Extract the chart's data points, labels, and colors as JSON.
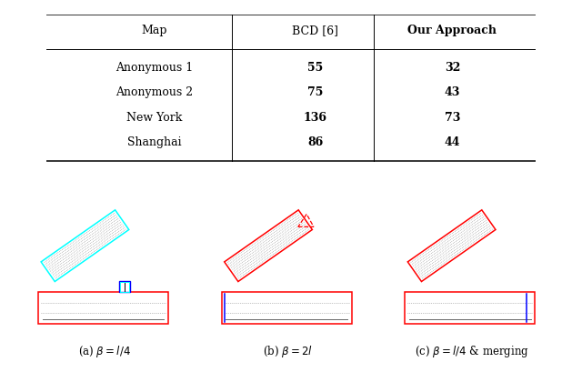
{
  "table": {
    "headers": [
      "Map",
      "BCD [6]",
      "Our Approach"
    ],
    "rows": [
      [
        "Anonymous 1",
        "55",
        "32"
      ],
      [
        "Anonymous 2",
        "75",
        "43"
      ],
      [
        "New York",
        "136",
        "73"
      ],
      [
        "Shanghai",
        "86",
        "44"
      ]
    ]
  },
  "captions": [
    "(a) $\\beta = l/4$",
    "(b) $\\beta = 2l$",
    "(c) $\\beta = l/4$ & merging"
  ],
  "fig_bg": "#ffffff",
  "scene_bg": "#000000"
}
